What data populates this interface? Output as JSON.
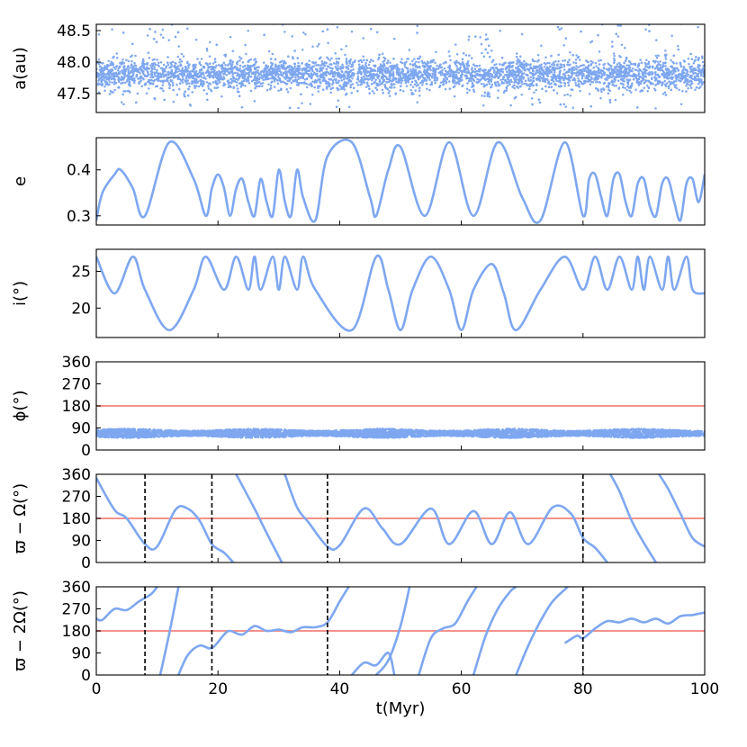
{
  "chart_data": {
    "type": "line",
    "shared_x": {
      "label": "t(Myr)",
      "range": [
        0,
        100
      ],
      "ticks": [
        0,
        20,
        40,
        60,
        80,
        100
      ],
      "tick_labels": [
        "0",
        "20",
        "40",
        "60",
        "80",
        "100"
      ]
    },
    "colors": {
      "series": "#7ea7f0",
      "reference_line": "#f3928b",
      "marker_line": "#000000"
    },
    "panels": [
      {
        "id": "a",
        "kind": "scatter",
        "ylabel": "a(au)",
        "ylim": [
          47.2,
          48.6
        ],
        "yticks": [
          47.5,
          48.0,
          48.5
        ],
        "ytick_labels": [
          "47.5",
          "48.0",
          "48.5"
        ],
        "description_values": {
          "mean": 47.8,
          "spread_core": 0.22,
          "spread_tail": 0.45
        },
        "hlines": [],
        "vlines": []
      },
      {
        "id": "e",
        "kind": "line",
        "ylabel": "e",
        "ylim": [
          0.28,
          0.47
        ],
        "yticks": [
          0.3,
          0.4
        ],
        "ytick_labels": [
          "0.3",
          "0.4"
        ],
        "x": [
          0,
          1,
          3,
          4,
          6,
          8,
          12,
          16,
          18,
          19,
          20,
          21,
          22,
          23,
          24,
          25,
          26,
          27,
          28,
          29,
          30,
          31,
          32,
          33,
          34,
          36,
          38,
          42,
          45,
          46,
          48,
          50,
          54,
          58,
          62,
          66,
          70,
          73,
          77,
          80,
          81,
          82,
          83,
          84,
          85,
          86,
          87,
          88,
          89,
          90,
          91,
          92,
          93,
          94,
          95,
          96,
          97,
          98,
          99,
          100
        ],
        "y": [
          0.29,
          0.35,
          0.39,
          0.4,
          0.36,
          0.3,
          0.46,
          0.38,
          0.3,
          0.36,
          0.39,
          0.36,
          0.3,
          0.36,
          0.38,
          0.33,
          0.3,
          0.38,
          0.33,
          0.3,
          0.4,
          0.33,
          0.3,
          0.4,
          0.34,
          0.29,
          0.43,
          0.46,
          0.34,
          0.3,
          0.4,
          0.45,
          0.3,
          0.46,
          0.3,
          0.46,
          0.34,
          0.29,
          0.46,
          0.3,
          0.38,
          0.39,
          0.34,
          0.3,
          0.38,
          0.39,
          0.33,
          0.3,
          0.37,
          0.38,
          0.32,
          0.3,
          0.37,
          0.38,
          0.33,
          0.29,
          0.37,
          0.38,
          0.33,
          0.39
        ],
        "hlines": [],
        "vlines": []
      },
      {
        "id": "i",
        "kind": "line",
        "ylabel": "i(°)",
        "ylim": [
          16,
          28
        ],
        "yticks": [
          20,
          25
        ],
        "ytick_labels": [
          "20",
          "25"
        ],
        "x": [
          0,
          3,
          6,
          8,
          12,
          16,
          18,
          21,
          23,
          25,
          26,
          27,
          29,
          30,
          31,
          33,
          34,
          36,
          42,
          46,
          48,
          50,
          52,
          55,
          58,
          60,
          62,
          65,
          67,
          69,
          73,
          77,
          80,
          82,
          84,
          86,
          88,
          89,
          90,
          91,
          93,
          94,
          95,
          97,
          98,
          100
        ],
        "y": [
          27,
          22,
          27,
          22.5,
          17,
          22.5,
          27,
          22.5,
          27,
          22.5,
          27,
          22.5,
          27,
          22.5,
          27,
          22.5,
          27,
          22.5,
          17,
          27,
          22.5,
          17,
          22.5,
          27,
          22.5,
          17,
          22.5,
          26,
          22,
          17,
          22.5,
          27,
          22.5,
          27,
          22.5,
          27,
          22.5,
          27,
          22.5,
          27,
          22.5,
          27,
          22.5,
          27,
          22.5,
          22
        ],
        "hlines": [],
        "vlines": []
      },
      {
        "id": "phi",
        "kind": "band",
        "ylabel": "ϕ(°)",
        "ylim": [
          0,
          360
        ],
        "yticks": [
          0,
          90,
          180,
          270,
          360
        ],
        "ytick_labels": [
          "0",
          "90",
          "180",
          "270",
          "360"
        ],
        "band_center": 68,
        "band_halfwidth": 16,
        "hlines": [
          180
        ],
        "vlines": []
      },
      {
        "id": "dw",
        "kind": "line",
        "ylabel": "ϖ − Ω(°)",
        "ylim": [
          0,
          360
        ],
        "yticks": [
          0,
          90,
          180,
          270,
          360
        ],
        "ytick_labels": [
          "0",
          "90",
          "180",
          "270",
          "360"
        ],
        "segments": [
          {
            "x": [
              0,
              3,
              5,
              8,
              10,
              13,
              15,
              17,
              19,
              21,
              22.5
            ],
            "y": [
              345,
              215,
              180,
              75,
              65,
              215,
              220,
              170,
              75,
              40,
              0
            ]
          },
          {
            "x": [
              23,
              26,
              28,
              30.5
            ],
            "y": [
              360,
              220,
              120,
              0
            ]
          },
          {
            "x": [
              31,
              33,
              35,
              38,
              40,
              44,
              47,
              50,
              55,
              58,
              62,
              65,
              68,
              71,
              75,
              78,
              80,
              82,
              84
            ],
            "y": [
              360,
              225,
              160,
              65,
              70,
              220,
              140,
              75,
              220,
              75,
              210,
              75,
              205,
              75,
              225,
              200,
              100,
              60,
              0
            ]
          },
          {
            "x": [
              84.5,
              86,
              88,
              90,
              92
            ],
            "y": [
              360,
              290,
              170,
              80,
              0
            ]
          },
          {
            "x": [
              92.5,
              94,
              96,
              98,
              100
            ],
            "y": [
              360,
              300,
              200,
              100,
              65
            ]
          }
        ],
        "hlines": [
          180
        ],
        "vlines": [
          8,
          19,
          38,
          80
        ]
      },
      {
        "id": "dw2",
        "kind": "line",
        "ylabel": "ϖ − 2Ω(°)",
        "ylim": [
          0,
          360
        ],
        "yticks": [
          0,
          90,
          180,
          270,
          360
        ],
        "ytick_labels": [
          "0",
          "90",
          "180",
          "270",
          "360"
        ],
        "segments": [
          {
            "x": [
              0,
              1,
              3,
              5,
              7,
              9,
              10
            ],
            "y": [
              230,
              225,
              270,
              265,
              300,
              330,
              360
            ]
          },
          {
            "x": [
              10.5,
              12,
              13.5
            ],
            "y": [
              0,
              170,
              360
            ]
          },
          {
            "x": [
              13.5,
              15,
              17,
              19,
              21,
              22,
              24,
              26,
              28,
              30,
              32,
              34,
              36,
              38,
              40,
              41.5
            ],
            "y": [
              0,
              80,
              120,
              110,
              165,
              180,
              165,
              200,
              180,
              185,
              175,
              195,
              195,
              215,
              300,
              360
            ]
          },
          {
            "x": [
              42,
              44,
              46,
              48,
              49
            ],
            "y": [
              0,
              50,
              40,
              90,
              0
            ]
          },
          {
            "x": [
              46,
              48,
              50,
              51.5
            ],
            "y": [
              0,
              60,
              200,
              360
            ]
          },
          {
            "x": [
              53,
              55,
              57,
              59,
              61,
              62.5
            ],
            "y": [
              0,
              150,
              190,
              210,
              300,
              360
            ]
          },
          {
            "x": [
              62,
              64,
              66,
              68,
              69
            ],
            "y": [
              0,
              160,
              270,
              340,
              360
            ]
          },
          {
            "x": [
              69,
              71,
              73,
              75,
              77.5
            ],
            "y": [
              0,
              120,
              220,
              300,
              360
            ]
          },
          {
            "x": [
              77,
              79,
              80,
              82,
              84,
              86,
              88,
              90,
              92,
              94,
              96,
              98,
              100
            ],
            "y": [
              130,
              160,
              150,
              190,
              220,
              215,
              230,
              215,
              230,
              210,
              240,
              245,
              255
            ]
          }
        ],
        "hlines": [
          180
        ],
        "vlines": [
          8,
          19,
          38,
          80
        ]
      }
    ]
  }
}
